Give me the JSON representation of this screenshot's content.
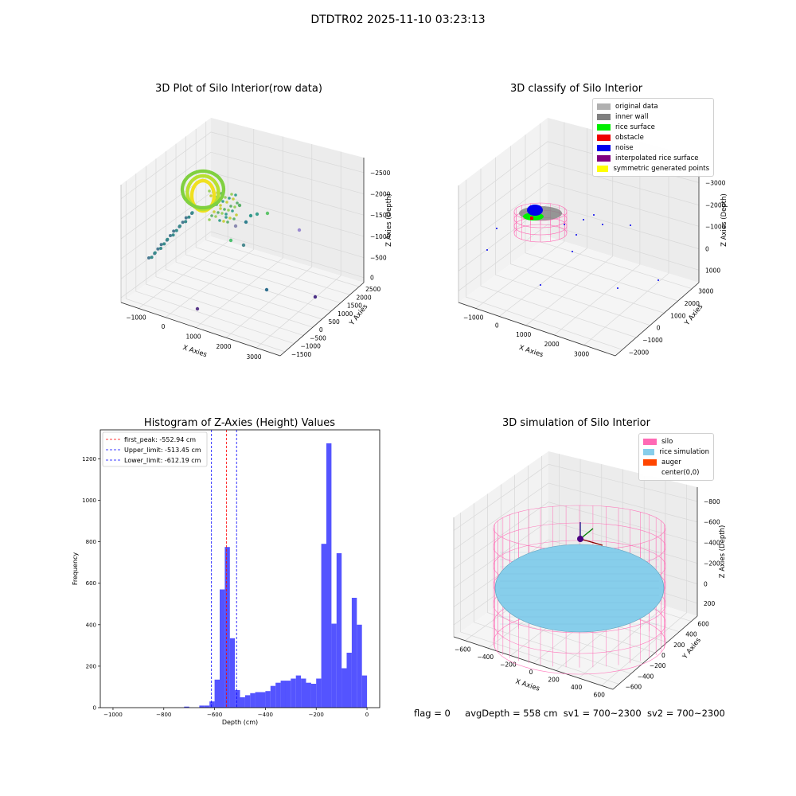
{
  "suptitle": "DTDTR02 2025-11-10 03:23:13",
  "panel1": {
    "title": "3D Plot of Silo Interior(row data)",
    "xlabel": "X Axies",
    "ylabel": "Y Axies",
    "zlabel": "Z Axies (Depth)",
    "x_ticks": [
      "−1000",
      "0",
      "1000",
      "2000",
      "3000"
    ],
    "y_ticks": [
      "−1500",
      "−1000",
      "−500",
      "0",
      "500",
      "1000",
      "1500",
      "2000",
      "2500"
    ],
    "z_ticks": [
      "0",
      "−500",
      "−1000",
      "−1500",
      "−2000",
      "−2500"
    ]
  },
  "panel2": {
    "title": "3D classify of Silo Interior",
    "xlabel": "X Axies",
    "ylabel": "Y Axies",
    "zlabel": "Z Axies (Depth)",
    "x_ticks": [
      "−1000",
      "0",
      "1000",
      "2000",
      "3000"
    ],
    "y_ticks": [
      "−2000",
      "−1000",
      "0",
      "1000",
      "2000",
      "3000"
    ],
    "z_ticks": [
      "1000",
      "0",
      "−1000",
      "−2000",
      "−3000"
    ],
    "legend": [
      {
        "label": "original data",
        "color": "#b0b0b0"
      },
      {
        "label": "inner wall",
        "color": "#808080"
      },
      {
        "label": "rice surface",
        "color": "#00ee00"
      },
      {
        "label": "obstacle",
        "color": "#ee0000"
      },
      {
        "label": "noise",
        "color": "#0000ee"
      },
      {
        "label": "interpolated rice surface",
        "color": "#800080"
      },
      {
        "label": "symmetric generated points",
        "color": "#ffff00"
      }
    ]
  },
  "panel4": {
    "title": "3D simulation of Silo Interior",
    "xlabel": "X Axies",
    "ylabel": "Y Axies",
    "zlabel": "Z Axies (Depth)",
    "x_ticks": [
      "−600",
      "−400",
      "−200",
      "0",
      "200",
      "400",
      "600"
    ],
    "y_ticks": [
      "−600",
      "−400",
      "−200",
      "0",
      "200",
      "400",
      "600"
    ],
    "z_ticks": [
      "200",
      "0",
      "−200",
      "−400",
      "−600",
      "−800"
    ],
    "legend": [
      {
        "label": "silo",
        "color": "#ff69b4"
      },
      {
        "label": "rice simulation",
        "color": "#87ceeb"
      },
      {
        "label": "auger",
        "color": "#ff4500"
      },
      {
        "label": "center(0,0)",
        "color": "#ffffff"
      }
    ]
  },
  "footer": {
    "flag": "flag = 0",
    "avg_depth": "avgDepth = 558 cm",
    "sv1": "sv1 = 700~2300",
    "sv2": "sv2 = 700~2300"
  },
  "chart_data": [
    {
      "type": "histogram",
      "title": "Histogram of Z-Axies (Height) Values",
      "xlabel": "Depth (cm)",
      "ylabel": "Frequency",
      "xlim": [
        -1050,
        50
      ],
      "ylim": [
        0,
        1340
      ],
      "x_ticks": [
        -1000,
        -800,
        -600,
        -400,
        -200,
        0
      ],
      "y_ticks": [
        0,
        200,
        400,
        600,
        800,
        1000,
        1200
      ],
      "bar_color": "#4b4bff",
      "bin_width": 20,
      "bins": [
        [
          -720,
          5
        ],
        [
          -660,
          10
        ],
        [
          -640,
          10
        ],
        [
          -620,
          30
        ],
        [
          -600,
          135
        ],
        [
          -580,
          570
        ],
        [
          -560,
          775
        ],
        [
          -540,
          335
        ],
        [
          -520,
          85
        ],
        [
          -500,
          50
        ],
        [
          -480,
          60
        ],
        [
          -460,
          70
        ],
        [
          -440,
          75
        ],
        [
          -420,
          75
        ],
        [
          -400,
          80
        ],
        [
          -380,
          105
        ],
        [
          -360,
          120
        ],
        [
          -340,
          130
        ],
        [
          -320,
          130
        ],
        [
          -300,
          140
        ],
        [
          -280,
          155
        ],
        [
          -260,
          140
        ],
        [
          -240,
          120
        ],
        [
          -220,
          115
        ],
        [
          -200,
          140
        ],
        [
          -180,
          790
        ],
        [
          -160,
          1275
        ],
        [
          -140,
          405
        ],
        [
          -120,
          745
        ],
        [
          -100,
          190
        ],
        [
          -80,
          265
        ],
        [
          -60,
          530
        ],
        [
          -40,
          400
        ],
        [
          -20,
          155
        ]
      ],
      "vlines": [
        {
          "label": "first_peak: -552.94 cm",
          "x": -552.94,
          "color": "#ff0000"
        },
        {
          "label": "Upper_limit: -513.45 cm",
          "x": -513.45,
          "color": "#0000ff"
        },
        {
          "label": "Lower_limit: -612.19 cm",
          "x": -612.19,
          "color": "#0000ff"
        }
      ]
    }
  ]
}
